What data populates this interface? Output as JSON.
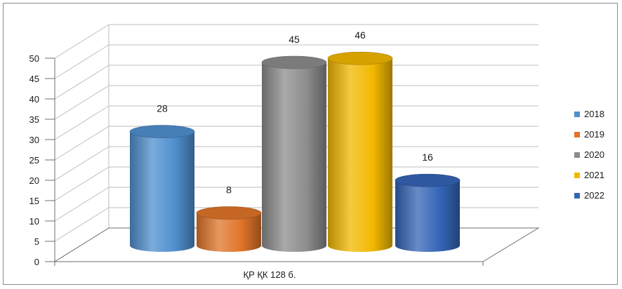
{
  "chart_data": {
    "type": "bar",
    "style": "3d-cylinder",
    "categories": [
      "ҚР ҚК 128 б."
    ],
    "series": [
      {
        "name": "2018",
        "values": [
          28
        ],
        "color": "#4f8fcf"
      },
      {
        "name": "2019",
        "values": [
          8
        ],
        "color": "#e07429"
      },
      {
        "name": "2020",
        "values": [
          45
        ],
        "color": "#8c8c8c"
      },
      {
        "name": "2021",
        "values": [
          46
        ],
        "color": "#f2b800"
      },
      {
        "name": "2022",
        "values": [
          16
        ],
        "color": "#3464b6"
      }
    ],
    "ylim": [
      0,
      50
    ],
    "yticks": [
      "0",
      "5",
      "10",
      "15",
      "20",
      "25",
      "30",
      "35",
      "40",
      "45",
      "50"
    ],
    "data_labels": [
      "28",
      "8",
      "45",
      "46",
      "16"
    ],
    "grid": true,
    "legend_position": "right"
  }
}
